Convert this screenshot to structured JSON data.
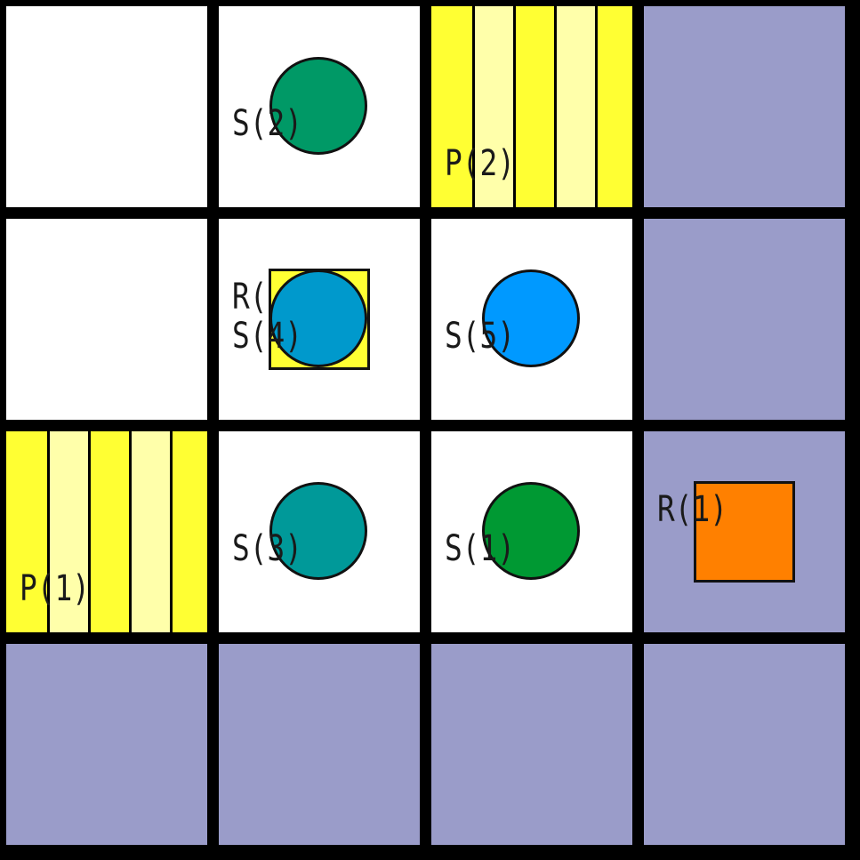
{
  "board": {
    "cells": [
      {
        "row": 0,
        "col": 0,
        "type": "free"
      },
      {
        "row": 0,
        "col": 1,
        "type": "free"
      },
      {
        "row": 0,
        "col": 2,
        "type": "pickup"
      },
      {
        "row": 0,
        "col": 3,
        "type": "blocked"
      },
      {
        "row": 1,
        "col": 0,
        "type": "free"
      },
      {
        "row": 1,
        "col": 1,
        "type": "free"
      },
      {
        "row": 1,
        "col": 2,
        "type": "free"
      },
      {
        "row": 1,
        "col": 3,
        "type": "blocked"
      },
      {
        "row": 2,
        "col": 0,
        "type": "pickup"
      },
      {
        "row": 2,
        "col": 1,
        "type": "free"
      },
      {
        "row": 2,
        "col": 2,
        "type": "free"
      },
      {
        "row": 2,
        "col": 3,
        "type": "blocked"
      },
      {
        "row": 3,
        "col": 0,
        "type": "blocked"
      },
      {
        "row": 3,
        "col": 1,
        "type": "blocked"
      },
      {
        "row": 3,
        "col": 2,
        "type": "blocked"
      },
      {
        "row": 3,
        "col": 3,
        "type": "blocked"
      }
    ],
    "pickups": [
      {
        "label": "P(2)",
        "row": 0,
        "col": 2
      },
      {
        "label": "P(1)",
        "row": 2,
        "col": 0
      }
    ],
    "shelves": [
      {
        "label": "S(2)",
        "row": 0,
        "col": 1,
        "color": "#009966"
      },
      {
        "label": "S(4)",
        "row": 1,
        "col": 1,
        "color": "#0099cc"
      },
      {
        "label": "S(5)",
        "row": 1,
        "col": 2,
        "color": "#0099ff"
      },
      {
        "label": "S(3)",
        "row": 2,
        "col": 1,
        "color": "#009999"
      },
      {
        "label": "S(1)",
        "row": 2,
        "col": 2,
        "color": "#009933"
      }
    ],
    "robots": [
      {
        "label": "R(",
        "row": 1,
        "col": 1,
        "color": "#ffff33"
      },
      {
        "label": "R(1)",
        "row": 2,
        "col": 3,
        "color": "#ff8000"
      }
    ],
    "colors": {
      "free": "#ffffff",
      "blocked": "#9a9cc9",
      "pickup_dark": "#ffff33",
      "pickup_light": "#ffffaa",
      "grid": "#000000"
    }
  }
}
